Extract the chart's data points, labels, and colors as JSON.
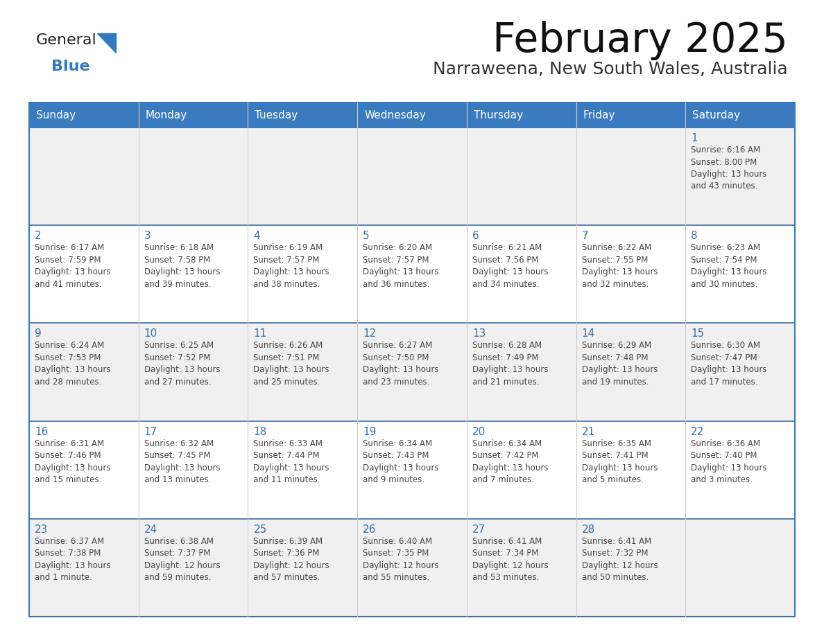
{
  "title": "February 2025",
  "subtitle": "Narraweena, New South Wales, Australia",
  "days_of_week": [
    "Sunday",
    "Monday",
    "Tuesday",
    "Wednesday",
    "Thursday",
    "Friday",
    "Saturday"
  ],
  "header_bg": "#3a7bbf",
  "header_text": "#FFFFFF",
  "cell_bg_white": "#FFFFFF",
  "cell_bg_gray": "#f0f0f0",
  "row_border_color": "#3a6fa8",
  "col_border_color": "#cccccc",
  "outer_border_color": "#3a7bbf",
  "day_number_color": "#3a6fa8",
  "text_color": "#444444",
  "title_color": "#111111",
  "subtitle_color": "#333333",
  "logo_general_color": "#222222",
  "logo_blue_color": "#2E7BBF",
  "weeks": [
    [
      {
        "day": null,
        "info": null
      },
      {
        "day": null,
        "info": null
      },
      {
        "day": null,
        "info": null
      },
      {
        "day": null,
        "info": null
      },
      {
        "day": null,
        "info": null
      },
      {
        "day": null,
        "info": null
      },
      {
        "day": 1,
        "info": "Sunrise: 6:16 AM\nSunset: 8:00 PM\nDaylight: 13 hours\nand 43 minutes."
      }
    ],
    [
      {
        "day": 2,
        "info": "Sunrise: 6:17 AM\nSunset: 7:59 PM\nDaylight: 13 hours\nand 41 minutes."
      },
      {
        "day": 3,
        "info": "Sunrise: 6:18 AM\nSunset: 7:58 PM\nDaylight: 13 hours\nand 39 minutes."
      },
      {
        "day": 4,
        "info": "Sunrise: 6:19 AM\nSunset: 7:57 PM\nDaylight: 13 hours\nand 38 minutes."
      },
      {
        "day": 5,
        "info": "Sunrise: 6:20 AM\nSunset: 7:57 PM\nDaylight: 13 hours\nand 36 minutes."
      },
      {
        "day": 6,
        "info": "Sunrise: 6:21 AM\nSunset: 7:56 PM\nDaylight: 13 hours\nand 34 minutes."
      },
      {
        "day": 7,
        "info": "Sunrise: 6:22 AM\nSunset: 7:55 PM\nDaylight: 13 hours\nand 32 minutes."
      },
      {
        "day": 8,
        "info": "Sunrise: 6:23 AM\nSunset: 7:54 PM\nDaylight: 13 hours\nand 30 minutes."
      }
    ],
    [
      {
        "day": 9,
        "info": "Sunrise: 6:24 AM\nSunset: 7:53 PM\nDaylight: 13 hours\nand 28 minutes."
      },
      {
        "day": 10,
        "info": "Sunrise: 6:25 AM\nSunset: 7:52 PM\nDaylight: 13 hours\nand 27 minutes."
      },
      {
        "day": 11,
        "info": "Sunrise: 6:26 AM\nSunset: 7:51 PM\nDaylight: 13 hours\nand 25 minutes."
      },
      {
        "day": 12,
        "info": "Sunrise: 6:27 AM\nSunset: 7:50 PM\nDaylight: 13 hours\nand 23 minutes."
      },
      {
        "day": 13,
        "info": "Sunrise: 6:28 AM\nSunset: 7:49 PM\nDaylight: 13 hours\nand 21 minutes."
      },
      {
        "day": 14,
        "info": "Sunrise: 6:29 AM\nSunset: 7:48 PM\nDaylight: 13 hours\nand 19 minutes."
      },
      {
        "day": 15,
        "info": "Sunrise: 6:30 AM\nSunset: 7:47 PM\nDaylight: 13 hours\nand 17 minutes."
      }
    ],
    [
      {
        "day": 16,
        "info": "Sunrise: 6:31 AM\nSunset: 7:46 PM\nDaylight: 13 hours\nand 15 minutes."
      },
      {
        "day": 17,
        "info": "Sunrise: 6:32 AM\nSunset: 7:45 PM\nDaylight: 13 hours\nand 13 minutes."
      },
      {
        "day": 18,
        "info": "Sunrise: 6:33 AM\nSunset: 7:44 PM\nDaylight: 13 hours\nand 11 minutes."
      },
      {
        "day": 19,
        "info": "Sunrise: 6:34 AM\nSunset: 7:43 PM\nDaylight: 13 hours\nand 9 minutes."
      },
      {
        "day": 20,
        "info": "Sunrise: 6:34 AM\nSunset: 7:42 PM\nDaylight: 13 hours\nand 7 minutes."
      },
      {
        "day": 21,
        "info": "Sunrise: 6:35 AM\nSunset: 7:41 PM\nDaylight: 13 hours\nand 5 minutes."
      },
      {
        "day": 22,
        "info": "Sunrise: 6:36 AM\nSunset: 7:40 PM\nDaylight: 13 hours\nand 3 minutes."
      }
    ],
    [
      {
        "day": 23,
        "info": "Sunrise: 6:37 AM\nSunset: 7:38 PM\nDaylight: 13 hours\nand 1 minute."
      },
      {
        "day": 24,
        "info": "Sunrise: 6:38 AM\nSunset: 7:37 PM\nDaylight: 12 hours\nand 59 minutes."
      },
      {
        "day": 25,
        "info": "Sunrise: 6:39 AM\nSunset: 7:36 PM\nDaylight: 12 hours\nand 57 minutes."
      },
      {
        "day": 26,
        "info": "Sunrise: 6:40 AM\nSunset: 7:35 PM\nDaylight: 12 hours\nand 55 minutes."
      },
      {
        "day": 27,
        "info": "Sunrise: 6:41 AM\nSunset: 7:34 PM\nDaylight: 12 hours\nand 53 minutes."
      },
      {
        "day": 28,
        "info": "Sunrise: 6:41 AM\nSunset: 7:32 PM\nDaylight: 12 hours\nand 50 minutes."
      },
      {
        "day": null,
        "info": null
      }
    ]
  ]
}
